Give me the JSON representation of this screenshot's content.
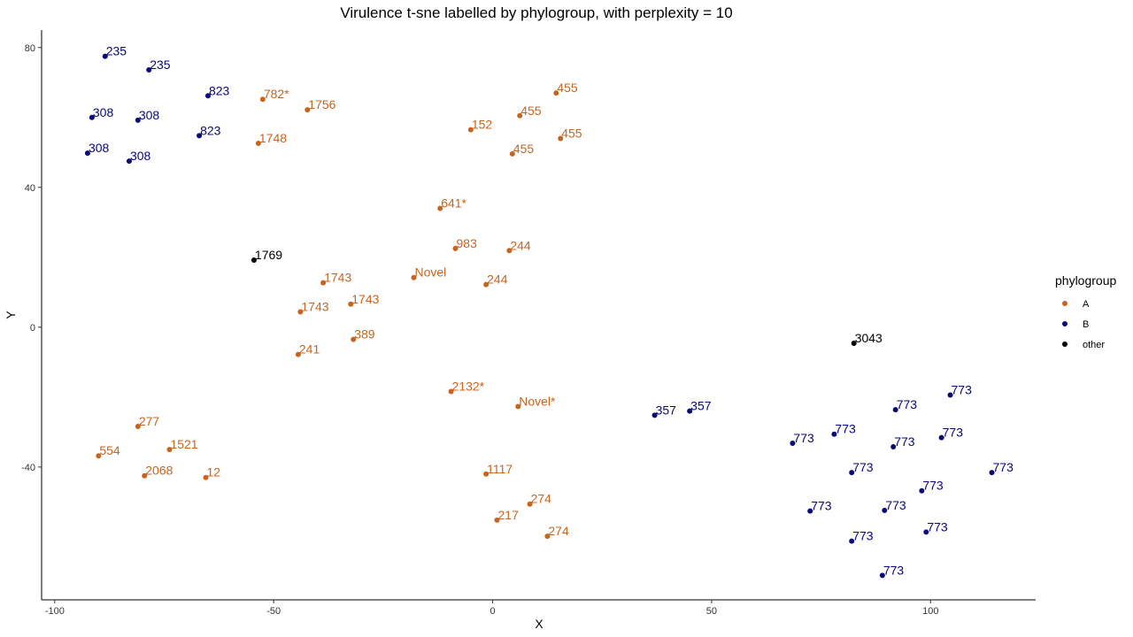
{
  "chart_data": {
    "type": "scatter",
    "title": "Virulence t-sne labelled by phylogroup, with perplexity = 10",
    "xlabel": "X",
    "ylabel": "Y",
    "xlim": [
      -103,
      124
    ],
    "ylim": [
      -78,
      85
    ],
    "xticks": [
      -100,
      -50,
      0,
      50,
      100
    ],
    "yticks": [
      -40,
      0,
      40,
      80
    ],
    "grid": false,
    "legend": {
      "title": "phylogroup",
      "position": "right",
      "items": [
        {
          "label": "A",
          "color": "#C8641E"
        },
        {
          "label": "B",
          "color": "#08087A"
        },
        {
          "label": "other",
          "color": "#000000"
        }
      ]
    },
    "series": [
      {
        "name": "A",
        "color": "#C8641E",
        "points": [
          {
            "x": -52.5,
            "y": 65.2,
            "label": "782*"
          },
          {
            "x": -42.3,
            "y": 62.2,
            "label": "1756"
          },
          {
            "x": -53.5,
            "y": 52.6,
            "label": "1748"
          },
          {
            "x": 14.5,
            "y": 67.0,
            "label": "455"
          },
          {
            "x": 6.2,
            "y": 60.5,
            "label": "455"
          },
          {
            "x": -5.0,
            "y": 56.5,
            "label": "152"
          },
          {
            "x": 15.5,
            "y": 54.0,
            "label": "455"
          },
          {
            "x": 4.5,
            "y": 49.6,
            "label": "455"
          },
          {
            "x": -12.0,
            "y": 34.0,
            "label": "641*"
          },
          {
            "x": -8.5,
            "y": 22.5,
            "label": "983"
          },
          {
            "x": 3.8,
            "y": 21.9,
            "label": "244"
          },
          {
            "x": -18.0,
            "y": 14.2,
            "label": "Novel"
          },
          {
            "x": -38.7,
            "y": 12.7,
            "label": "1743"
          },
          {
            "x": -1.5,
            "y": 12.2,
            "label": "244"
          },
          {
            "x": -32.4,
            "y": 6.6,
            "label": "1743"
          },
          {
            "x": -43.9,
            "y": 4.4,
            "label": "1743"
          },
          {
            "x": -31.8,
            "y": -3.5,
            "label": "389"
          },
          {
            "x": -44.4,
            "y": -7.8,
            "label": "241"
          },
          {
            "x": -9.5,
            "y": -18.4,
            "label": "2132*"
          },
          {
            "x": 5.8,
            "y": -22.7,
            "label": "Novel*"
          },
          {
            "x": -81.0,
            "y": -28.4,
            "label": "277"
          },
          {
            "x": -73.8,
            "y": -35.0,
            "label": "1521"
          },
          {
            "x": -90.0,
            "y": -36.8,
            "label": "554"
          },
          {
            "x": -79.5,
            "y": -42.5,
            "label": "2068"
          },
          {
            "x": -65.5,
            "y": -43.0,
            "label": "12"
          },
          {
            "x": -1.5,
            "y": -42.0,
            "label": "1117"
          },
          {
            "x": 8.5,
            "y": -50.6,
            "label": "274"
          },
          {
            "x": 1.0,
            "y": -55.2,
            "label": "217"
          },
          {
            "x": 12.5,
            "y": -59.8,
            "label": "274"
          }
        ]
      },
      {
        "name": "B",
        "color": "#08087A",
        "points": [
          {
            "x": -88.5,
            "y": 77.5,
            "label": "235"
          },
          {
            "x": -78.5,
            "y": 73.6,
            "label": "235"
          },
          {
            "x": -65.0,
            "y": 66.2,
            "label": "823"
          },
          {
            "x": -91.5,
            "y": 60.0,
            "label": "308"
          },
          {
            "x": -81.0,
            "y": 59.2,
            "label": "308"
          },
          {
            "x": -67.0,
            "y": 54.8,
            "label": "823"
          },
          {
            "x": -92.5,
            "y": 49.8,
            "label": "308"
          },
          {
            "x": -83.0,
            "y": 47.5,
            "label": "308"
          },
          {
            "x": 37.0,
            "y": -25.2,
            "label": "357"
          },
          {
            "x": 45.0,
            "y": -24.0,
            "label": "357"
          },
          {
            "x": 104.5,
            "y": -19.4,
            "label": "773"
          },
          {
            "x": 92.0,
            "y": -23.6,
            "label": "773"
          },
          {
            "x": 78.0,
            "y": -30.6,
            "label": "773"
          },
          {
            "x": 68.5,
            "y": -33.2,
            "label": "773"
          },
          {
            "x": 91.5,
            "y": -34.2,
            "label": "773"
          },
          {
            "x": 102.5,
            "y": -31.6,
            "label": "773"
          },
          {
            "x": 82.0,
            "y": -41.6,
            "label": "773"
          },
          {
            "x": 114.0,
            "y": -41.6,
            "label": "773"
          },
          {
            "x": 98.0,
            "y": -46.8,
            "label": "773"
          },
          {
            "x": 72.5,
            "y": -52.6,
            "label": "773"
          },
          {
            "x": 89.5,
            "y": -52.4,
            "label": "773"
          },
          {
            "x": 99.0,
            "y": -58.6,
            "label": "773"
          },
          {
            "x": 82.0,
            "y": -61.2,
            "label": "773"
          },
          {
            "x": 89.0,
            "y": -71.0,
            "label": "773"
          }
        ]
      },
      {
        "name": "other",
        "color": "#000000",
        "points": [
          {
            "x": -54.5,
            "y": 19.2,
            "label": "1769"
          },
          {
            "x": 82.5,
            "y": -4.6,
            "label": "3043"
          }
        ]
      }
    ]
  }
}
